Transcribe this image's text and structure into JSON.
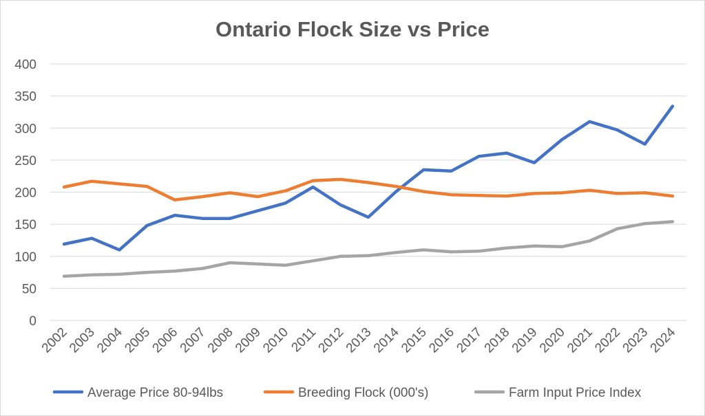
{
  "chart_data": {
    "type": "line",
    "title": "Ontario Flock Size vs Price",
    "xlabel": "",
    "ylabel": "",
    "categories": [
      "2002",
      "2003",
      "2004",
      "2005",
      "2006",
      "2007",
      "2008",
      "2009",
      "2010",
      "2011",
      "2012",
      "2013",
      "2014",
      "2015",
      "2016",
      "2017",
      "2018",
      "2019",
      "2020",
      "2021",
      "2022",
      "2023",
      "2024"
    ],
    "ylim": [
      0,
      400
    ],
    "yticks": [
      0,
      50,
      100,
      150,
      200,
      250,
      300,
      350,
      400
    ],
    "grid": true,
    "legend": "bottom",
    "series": [
      {
        "name": "Average Price 80-94lbs",
        "color": "#4472c4",
        "values": [
          119,
          128,
          110,
          148,
          164,
          159,
          159,
          171,
          183,
          208,
          180,
          161,
          201,
          235,
          233,
          256,
          261,
          246,
          282,
          310,
          297,
          275,
          334
        ]
      },
      {
        "name": "Breeding Flock (000's)",
        "color": "#ed7d31",
        "values": [
          208,
          217,
          213,
          209,
          188,
          193,
          199,
          193,
          202,
          218,
          220,
          215,
          209,
          201,
          196,
          195,
          194,
          198,
          199,
          203,
          198,
          199,
          194
        ]
      },
      {
        "name": "Farm Input Price Index",
        "color": "#a5a5a5",
        "values": [
          69,
          71,
          72,
          75,
          77,
          81,
          90,
          88,
          86,
          93,
          100,
          101,
          106,
          110,
          107,
          108,
          113,
          116,
          115,
          124,
          143,
          151,
          154
        ]
      }
    ]
  }
}
